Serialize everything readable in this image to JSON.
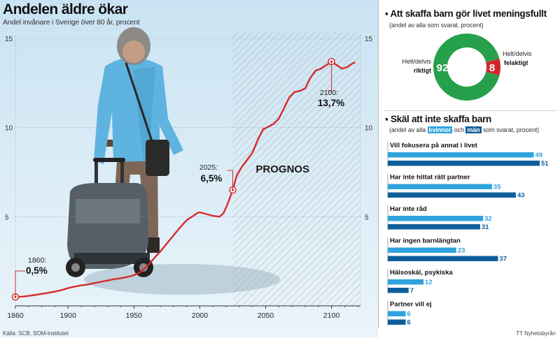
{
  "chart_data": [
    {
      "type": "line",
      "title": "Andelen äldre ökar",
      "subtitle": "Andel invånare i Sverige över 80 år, procent",
      "xlabel": "",
      "ylabel": "",
      "xlim": [
        1860,
        2122
      ],
      "ylim": [
        0,
        15
      ],
      "x_ticks": [
        1860,
        1900,
        1950,
        2000,
        2050,
        2100
      ],
      "y_ticks": [
        5,
        10,
        15
      ],
      "grid": true,
      "forecast_region": {
        "from": 2025,
        "to": 2122,
        "label": "PROGNOS"
      },
      "series": [
        {
          "color": "#d52b2b",
          "points": [
            [
              1860,
              0.5
            ],
            [
              1866,
              0.52
            ],
            [
              1872,
              0.58
            ],
            [
              1878,
              0.65
            ],
            [
              1884,
              0.72
            ],
            [
              1890,
              0.8
            ],
            [
              1896,
              0.9
            ],
            [
              1900,
              1.0
            ],
            [
              1905,
              1.08
            ],
            [
              1910,
              1.15
            ],
            [
              1915,
              1.2
            ],
            [
              1920,
              1.28
            ],
            [
              1925,
              1.35
            ],
            [
              1930,
              1.42
            ],
            [
              1935,
              1.5
            ],
            [
              1940,
              1.55
            ],
            [
              1945,
              1.62
            ],
            [
              1950,
              1.72
            ],
            [
              1955,
              1.9
            ],
            [
              1958,
              2.1
            ],
            [
              1961,
              2.3
            ],
            [
              1965,
              2.65
            ],
            [
              1970,
              3.05
            ],
            [
              1975,
              3.5
            ],
            [
              1980,
              3.95
            ],
            [
              1985,
              4.4
            ],
            [
              1990,
              4.8
            ],
            [
              1995,
              5.05
            ],
            [
              1998,
              5.2
            ],
            [
              2000,
              5.25
            ],
            [
              2005,
              5.15
            ],
            [
              2010,
              5.05
            ],
            [
              2015,
              5.0
            ],
            [
              2018,
              5.2
            ],
            [
              2021,
              5.7
            ],
            [
              2025,
              6.5
            ],
            [
              2028,
              7.3
            ],
            [
              2032,
              7.8
            ],
            [
              2036,
              8.2
            ],
            [
              2040,
              8.6
            ],
            [
              2044,
              9.3
            ],
            [
              2048,
              9.9
            ],
            [
              2052,
              10.05
            ],
            [
              2056,
              10.2
            ],
            [
              2060,
              10.5
            ],
            [
              2064,
              11.1
            ],
            [
              2068,
              11.7
            ],
            [
              2072,
              12.0
            ],
            [
              2076,
              12.05
            ],
            [
              2080,
              12.2
            ],
            [
              2084,
              12.8
            ],
            [
              2088,
              13.2
            ],
            [
              2092,
              13.3
            ],
            [
              2096,
              13.5
            ],
            [
              2100,
              13.7
            ],
            [
              2104,
              13.5
            ],
            [
              2108,
              13.3
            ],
            [
              2112,
              13.4
            ],
            [
              2116,
              13.6
            ],
            [
              2118,
              13.65
            ]
          ]
        }
      ],
      "annotations": [
        {
          "x": 1860,
          "y": 0.5,
          "year": "1860:",
          "value": "0,5%"
        },
        {
          "x": 2025,
          "y": 6.5,
          "year": "2025:",
          "value": "6,5%"
        },
        {
          "x": 2100,
          "y": 13.7,
          "year": "2100:",
          "value": "13,7%"
        }
      ]
    },
    {
      "type": "pie",
      "title": "Att skaffa barn gör livet meningsfullt",
      "subtitle": "(andel av alla som svarat, procent)",
      "slices": [
        {
          "value": 92,
          "label_top": "Helt/delvis",
          "label_bold": "riktigt",
          "color": "#27a04b"
        },
        {
          "value": 8,
          "label_top": "Helt/delvis",
          "label_bold": "felaktigt",
          "color": "#d3262a"
        }
      ]
    },
    {
      "type": "bar",
      "orientation": "horizontal",
      "title": "Skäl att inte skaffa barn",
      "subtitle": {
        "pre": "(andel av alla ",
        "women": "kvinnor",
        "mid": " och ",
        "men": "män",
        "post": " som svarat, procent)"
      },
      "max_value": 55,
      "categories": [
        "Vill fokusera på annat i livet",
        "Har inte hittat rätt partner",
        "Har inte råd",
        "Har ingen barnlängtan",
        "Hälsoskäl, psykiska",
        "Partner vill ej"
      ],
      "series": [
        {
          "name": "kvinnor",
          "color": "#2ea3dc",
          "values": [
            49,
            35,
            32,
            23,
            12,
            6
          ]
        },
        {
          "name": "män",
          "color": "#0e5e9a",
          "values": [
            51,
            43,
            31,
            37,
            7,
            6
          ]
        }
      ]
    }
  ],
  "footer": {
    "source": "Källa: SCB, SOM-institutet",
    "credit": "TT Nyhetsbyrån"
  },
  "icons": {
    "title_bullet": "bullet-icon",
    "photo": "elderly-person-photo"
  }
}
